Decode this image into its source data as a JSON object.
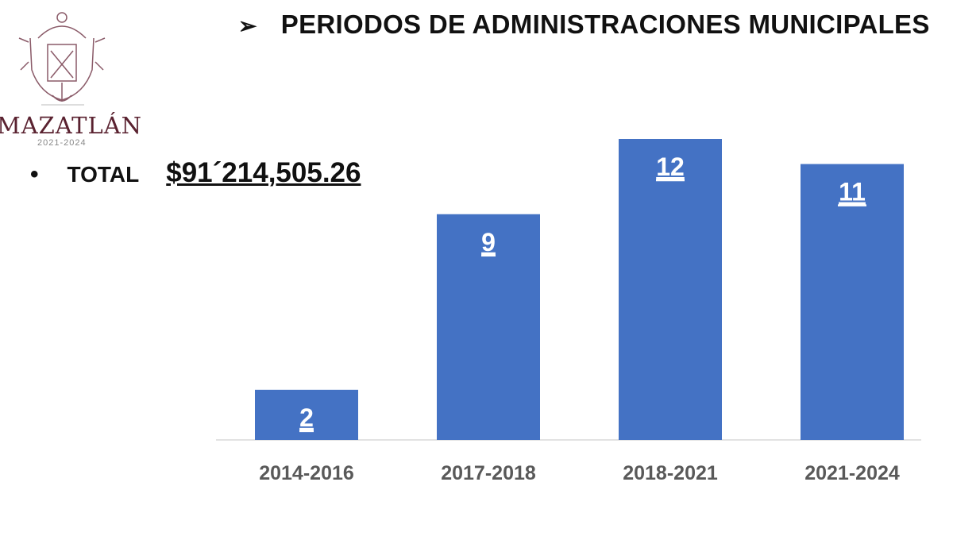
{
  "header": {
    "title": "PERIODOS DE ADMINISTRACIONES MUNICIPALES"
  },
  "logo": {
    "name": "MAZATLÁN",
    "years": "2021-2024"
  },
  "summary": {
    "bullet": "•",
    "label": "TOTAL",
    "value": "$91´214,505.26"
  },
  "colors": {
    "bar": "#4472c4",
    "logo": "#5a2230"
  },
  "chart_data": {
    "type": "bar",
    "title": "PERIODOS DE ADMINISTRACIONES MUNICIPALES",
    "categories": [
      "2014-2016",
      "2017-2018",
      "2018-2021",
      "2021-2024"
    ],
    "values": [
      2,
      9,
      12,
      11
    ],
    "data_labels": [
      "2",
      "9",
      "12",
      "11"
    ],
    "xlabel": "",
    "ylabel": "",
    "ylim": [
      0,
      12
    ],
    "grid": false,
    "legend": "none"
  }
}
